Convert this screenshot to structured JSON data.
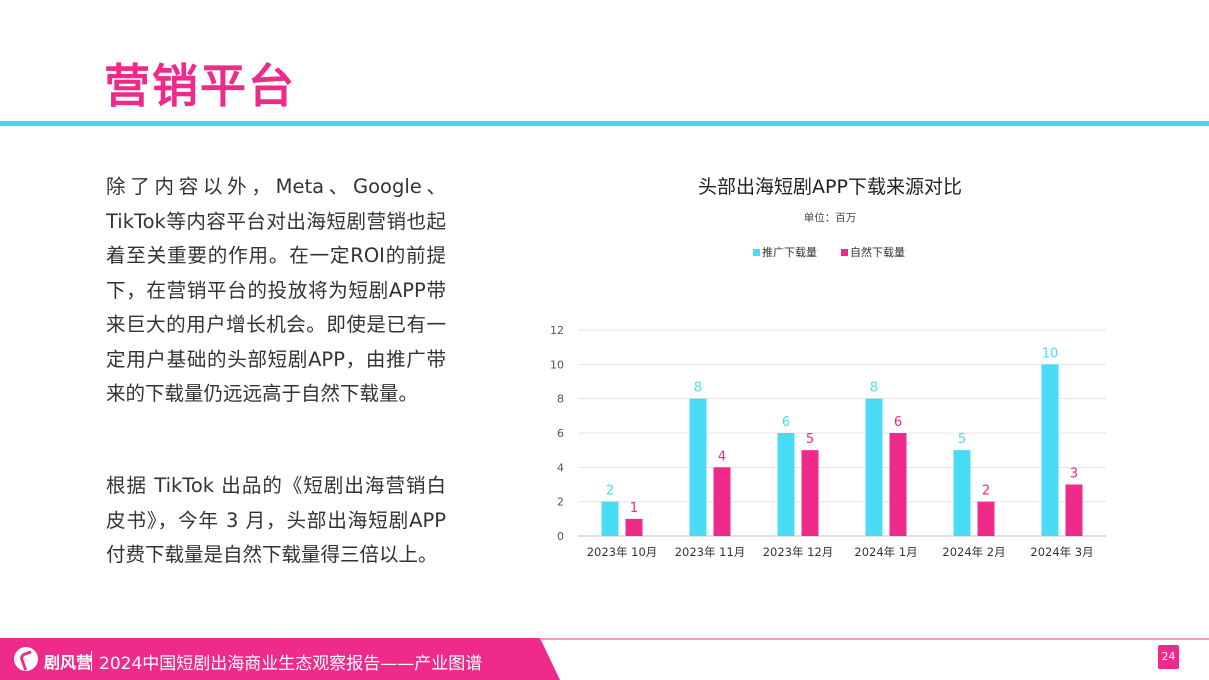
{
  "page": {
    "title": "营销平台",
    "paragraphs": [
      "除了内容以外，Meta、Google、TikTok等内容平台对出海短剧营销也起着至关重要的作用。在一定ROI的前提下，在营销平台的投放将为短剧APP带来巨大的用户增长机会。即使是已有一定用户基础的头部短剧APP，由推广带来的下载量仍远远高于自然下载量。",
      "根据 TikTok 出品的《短剧出海营销白皮书》，今年 3 月，头部出海短剧APP付费下载量是自然下载量得三倍以上。"
    ],
    "footer": {
      "brand": "剧风营",
      "text": "2024中国短剧出海商业生态观察报告——产业图谱",
      "page_number": "24"
    },
    "logo_icon": "brand-swirl-icon"
  },
  "chart_data": {
    "type": "bar",
    "title": "头部出海短剧APP下载来源对比",
    "subtitle": "单位：百万",
    "categories": [
      "2023年 10月",
      "2023年 11月",
      "2023年 12月",
      "2024年 1月",
      "2024年 2月",
      "2024年 3月"
    ],
    "series": [
      {
        "name": "推广下载量",
        "values": [
          2,
          8,
          6,
          8,
          5,
          10
        ],
        "color": "#48dcf4"
      },
      {
        "name": "自然下载量",
        "values": [
          1,
          4,
          5,
          6,
          2,
          3
        ],
        "color": "#ee2a8a"
      }
    ],
    "ylim": [
      0,
      12
    ],
    "yticks": [
      "0",
      "2",
      "4",
      "6",
      "8",
      "10",
      "12"
    ],
    "grid": true,
    "legend": "top"
  }
}
